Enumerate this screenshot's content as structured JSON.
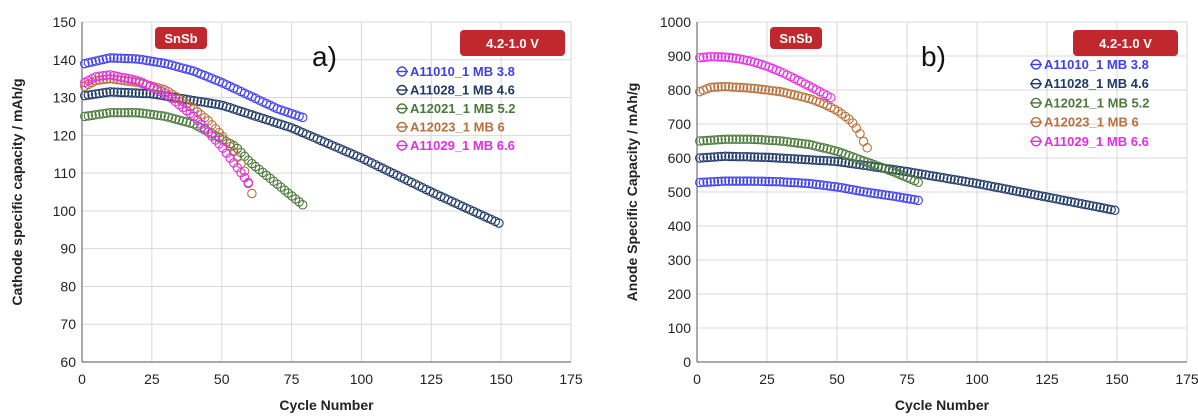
{
  "chart_data": [
    {
      "type": "scatter",
      "panel_label": "a)",
      "tag_left": "SnSb",
      "tag_right": "4.2-1.0 V",
      "tag_color": "#c0282d",
      "ylabel": "Cathode specific capacity / mAh/g",
      "xlabel": "Cycle Number",
      "xlim": [
        0,
        175
      ],
      "ylim": [
        60,
        150
      ],
      "xticks": [
        0,
        25,
        50,
        75,
        100,
        125,
        150,
        175
      ],
      "yticks": [
        60,
        70,
        80,
        90,
        100,
        110,
        120,
        130,
        140,
        150
      ],
      "grid": true,
      "legend_position": "right",
      "marker": "open-circle",
      "series": [
        {
          "name": "A11010_1 MB 3.8",
          "color": "#3f40f2",
          "x": [
            1,
            10,
            20,
            30,
            40,
            50,
            60,
            70,
            80
          ],
          "y": [
            139,
            140.5,
            140.2,
            139,
            137,
            134,
            130.5,
            127,
            124.5
          ]
        },
        {
          "name": "A11028_1 MB 4.6",
          "color": "#1f3a68",
          "x": [
            1,
            10,
            25,
            50,
            75,
            100,
            125,
            150
          ],
          "y": [
            130.5,
            131.5,
            131,
            128,
            122,
            114,
            105,
            96.5
          ]
        },
        {
          "name": "A12021_1 MB 5.2",
          "color": "#4a7a3a",
          "x": [
            1,
            10,
            20,
            30,
            40,
            50,
            55,
            60,
            65,
            70,
            75,
            80
          ],
          "y": [
            125,
            126,
            126,
            125,
            123,
            119,
            117,
            113,
            110,
            107,
            104,
            101
          ]
        },
        {
          "name": "A12023_1 MB 6",
          "color": "#b8703a",
          "x": [
            1,
            5,
            10,
            20,
            30,
            40,
            45,
            50,
            55,
            58,
            60,
            62
          ],
          "y": [
            133,
            134.5,
            135,
            134,
            132,
            127,
            124,
            120,
            115,
            111,
            106,
            102.5
          ]
        },
        {
          "name": "A11029_1 MB 6.6",
          "color": "#e62de6",
          "x": [
            1,
            5,
            10,
            20,
            30,
            40,
            45,
            50,
            55,
            58,
            60
          ],
          "y": [
            134,
            135.5,
            136,
            134.5,
            131,
            125,
            121,
            117,
            112,
            109,
            107
          ]
        }
      ]
    },
    {
      "type": "scatter",
      "panel_label": "b)",
      "tag_left": "SnSb",
      "tag_right": "4.2-1.0 V",
      "tag_color": "#c0282d",
      "ylabel": "Anode Specific Capacity / mAh/g",
      "xlabel": "Cycle Number",
      "xlim": [
        0,
        175
      ],
      "ylim": [
        0,
        1000
      ],
      "xticks": [
        0,
        25,
        50,
        75,
        100,
        125,
        150,
        175
      ],
      "yticks": [
        0,
        100,
        200,
        300,
        400,
        500,
        600,
        700,
        800,
        900,
        1000
      ],
      "grid": true,
      "legend_position": "right",
      "marker": "open-circle",
      "series": [
        {
          "name": "A11010_1 MB 3.8",
          "color": "#3f40f2",
          "x": [
            1,
            10,
            20,
            30,
            40,
            50,
            60,
            70,
            80
          ],
          "y": [
            528,
            532,
            532,
            530,
            525,
            515,
            500,
            488,
            474
          ]
        },
        {
          "name": "A11028_1 MB 4.6",
          "color": "#1f3a68",
          "x": [
            1,
            10,
            25,
            50,
            75,
            100,
            125,
            150
          ],
          "y": [
            600,
            605,
            602,
            590,
            560,
            525,
            485,
            445
          ]
        },
        {
          "name": "A12021_1 MB 5.2",
          "color": "#4a7a3a",
          "x": [
            1,
            10,
            20,
            30,
            40,
            50,
            60,
            70,
            80
          ],
          "y": [
            650,
            655,
            655,
            650,
            640,
            620,
            590,
            560,
            525
          ]
        },
        {
          "name": "A12023_1 MB 6",
          "color": "#b8703a",
          "x": [
            1,
            5,
            10,
            20,
            30,
            40,
            45,
            50,
            55,
            58,
            60,
            62
          ],
          "y": [
            795,
            808,
            810,
            805,
            795,
            775,
            760,
            740,
            710,
            675,
            640,
            615
          ]
        },
        {
          "name": "A11029_1 MB 6.6",
          "color": "#e62de6",
          "x": [
            1,
            5,
            10,
            15,
            20,
            25,
            30,
            35,
            40,
            45,
            49
          ],
          "y": [
            895,
            898,
            897,
            892,
            883,
            870,
            853,
            833,
            812,
            790,
            772
          ]
        }
      ]
    }
  ]
}
